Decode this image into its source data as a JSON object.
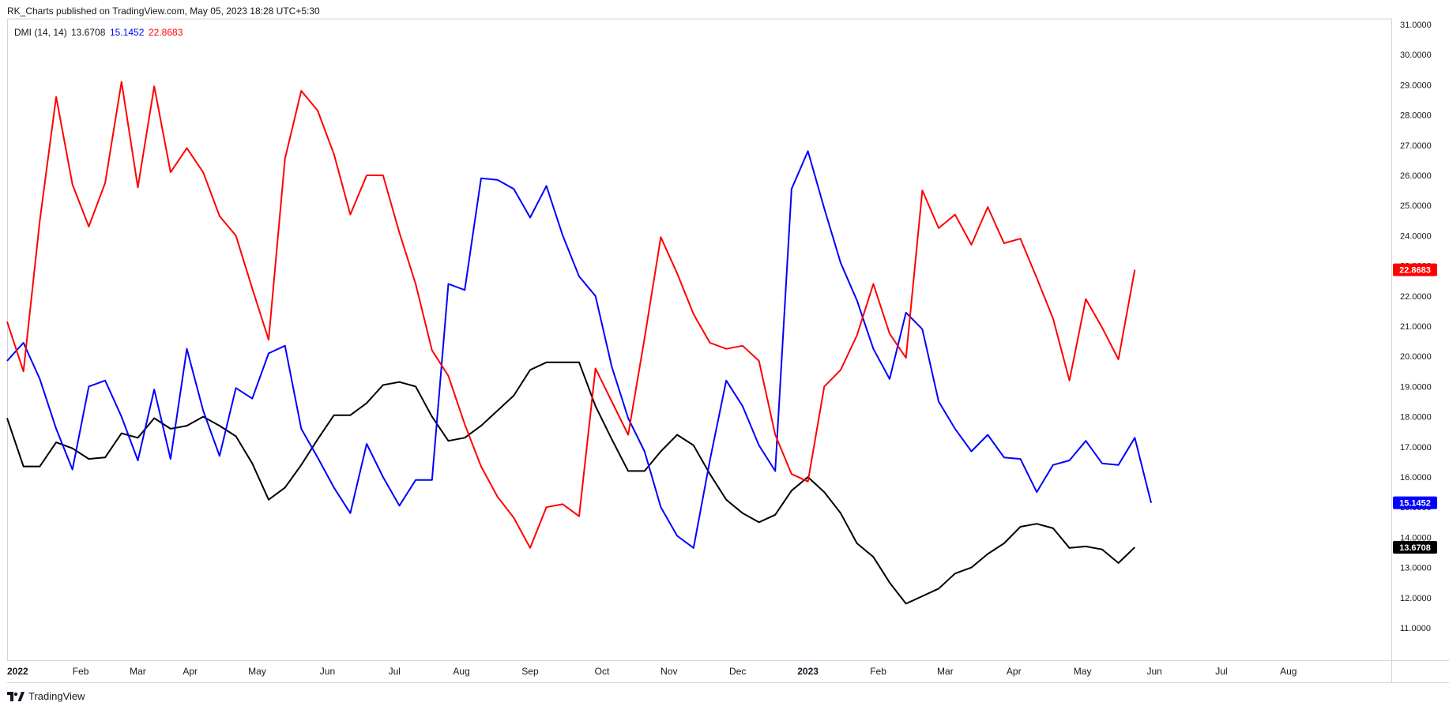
{
  "header": {
    "title": "RK_Charts published on TradingView.com, May 05, 2023 18:28 UTC+5:30"
  },
  "legend": {
    "name": "DMI (14, 14)",
    "values": [
      "13.6708",
      "15.1452",
      "22.8683"
    ]
  },
  "branding": {
    "logo_text": "TradingView",
    "logo_icon": "tradingview-logo-icon"
  },
  "colors": {
    "adx": "#000000",
    "plus_di": "#0000ff",
    "minus_di": "#ff0000",
    "axis_line": "#d1d4dc",
    "text": "#131722"
  },
  "chart_data": {
    "type": "line",
    "title": "DMI (14, 14)",
    "x_axis_labels": [
      "2022",
      "Feb",
      "Mar",
      "Apr",
      "May",
      "Jun",
      "Jul",
      "Aug",
      "Sep",
      "Oct",
      "Nov",
      "Dec",
      "2023",
      "Feb",
      "Mar",
      "Apr",
      "May",
      "Jun",
      "Jul",
      "Aug"
    ],
    "y_ticks": [
      "11.0000",
      "12.0000",
      "13.0000",
      "14.0000",
      "15.0000",
      "16.0000",
      "17.0000",
      "18.0000",
      "19.0000",
      "20.0000",
      "21.0000",
      "22.0000",
      "23.0000",
      "24.0000",
      "25.0000",
      "26.0000",
      "27.0000",
      "28.0000",
      "29.0000",
      "30.0000",
      "31.0000"
    ],
    "ylim": [
      10,
      31
    ],
    "grid": false,
    "x_index_range": [
      0,
      84
    ],
    "series": [
      {
        "color": "#000000",
        "last_value": "13.6708",
        "values": [
          17.95,
          16.35,
          16.35,
          17.15,
          16.95,
          16.6,
          16.65,
          17.45,
          17.3,
          17.95,
          17.6,
          17.7,
          18.0,
          17.7,
          17.35,
          16.45,
          15.25,
          15.65,
          16.4,
          17.25,
          18.05,
          18.05,
          18.45,
          19.05,
          19.15,
          19.0,
          18.0,
          17.2,
          17.3,
          17.7,
          18.2,
          18.7,
          19.55,
          19.8,
          19.8,
          19.8,
          18.35,
          17.25,
          16.2,
          16.2,
          16.85,
          17.4,
          17.05,
          16.1,
          15.25,
          14.8,
          14.5,
          14.75,
          15.55,
          16.0,
          15.5,
          14.8,
          13.8,
          13.35,
          12.5,
          11.8,
          12.05,
          12.3,
          12.8,
          13.0,
          13.45,
          13.8,
          14.35,
          14.45,
          14.3,
          13.65,
          13.7,
          13.6,
          13.15,
          13.6708
        ]
      },
      {
        "color": "#0000ff",
        "last_value": "15.1452",
        "values": [
          19.85,
          20.45,
          19.25,
          17.6,
          16.25,
          19.0,
          19.2,
          18.0,
          16.55,
          18.9,
          16.6,
          20.25,
          18.2,
          16.7,
          18.95,
          18.6,
          20.1,
          20.35,
          17.6,
          16.65,
          15.65,
          14.8,
          17.1,
          16.0,
          15.05,
          15.9,
          15.9,
          22.4,
          22.2,
          25.9,
          25.85,
          25.55,
          24.6,
          25.65,
          24.0,
          22.65,
          22.0,
          19.65,
          17.95,
          16.85,
          15.0,
          14.05,
          13.65,
          16.55,
          19.2,
          18.35,
          17.05,
          16.2,
          25.55,
          26.8,
          24.9,
          23.1,
          21.85,
          20.25,
          19.25,
          21.45,
          20.9,
          18.5,
          17.6,
          16.85,
          17.4,
          16.65,
          16.6,
          15.5,
          16.4,
          16.55,
          17.2,
          16.45,
          16.4,
          17.3,
          15.1452
        ]
      },
      {
        "color": "#ff0000",
        "last_value": "22.8683",
        "values": [
          21.15,
          19.5,
          24.5,
          28.6,
          25.7,
          24.3,
          25.75,
          29.1,
          25.6,
          28.95,
          26.1,
          26.9,
          26.1,
          24.65,
          24.0,
          22.25,
          20.55,
          26.55,
          28.8,
          28.15,
          26.7,
          24.7,
          26.0,
          26.0,
          24.1,
          22.4,
          20.2,
          19.35,
          17.75,
          16.35,
          15.35,
          14.65,
          13.65,
          15.0,
          15.1,
          14.7,
          19.6,
          18.5,
          17.4,
          20.6,
          23.95,
          22.75,
          21.4,
          20.45,
          20.25,
          20.35,
          19.85,
          17.4,
          16.1,
          15.85,
          19.0,
          19.55,
          20.7,
          22.4,
          20.75,
          19.95,
          25.5,
          24.25,
          24.7,
          23.7,
          24.95,
          23.75,
          23.9,
          22.6,
          21.25,
          19.2,
          21.9,
          20.95,
          19.9,
          22.8683
        ]
      }
    ]
  }
}
